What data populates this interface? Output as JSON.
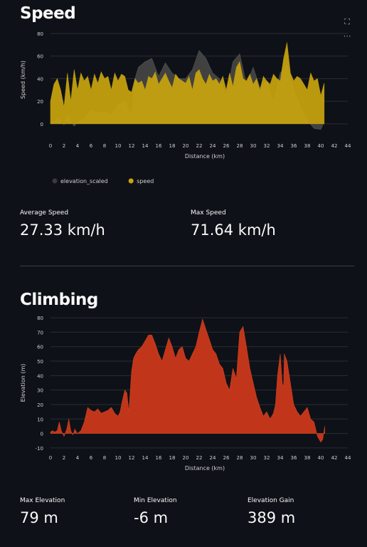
{
  "speed_section": {
    "title": "Speed",
    "toolbar": {
      "fullscreen_icon": "fullscreen-icon",
      "menu_icon": "more-horizontal-icon"
    }
  },
  "climbing_section": {
    "title": "Climbing"
  },
  "speed_metrics": {
    "avg_label": "Average Speed",
    "avg_value": "27.33 km/h",
    "max_label": "Max Speed",
    "max_value": "71.64 km/h"
  },
  "climb_metrics": {
    "max_elev_label": "Max Elevation",
    "max_elev_value": "79 m",
    "min_elev_label": "Min Elevation",
    "min_elev_value": "-6 m",
    "gain_label": "Elevation Gain",
    "gain_value": "389 m"
  },
  "colors": {
    "speed": "#c9a50f",
    "elevation_scaled": "#4a4a4a",
    "elevation": "#c1361b",
    "background": "#0e1117"
  },
  "chart_data": [
    {
      "type": "area",
      "xlabel": "Distance (km)",
      "ylabel": "Speed (km/h)",
      "xlim": [
        0,
        44
      ],
      "ylim": [
        -2,
        80
      ],
      "xticks": [
        "0",
        "2",
        "4",
        "6",
        "8",
        "10",
        "12",
        "14",
        "16",
        "18",
        "20",
        "22",
        "24",
        "26",
        "28",
        "30",
        "32",
        "34",
        "36",
        "38",
        "40",
        "42",
        "44"
      ],
      "yticks": [
        "0",
        "20",
        "40",
        "60",
        "80"
      ],
      "legend_position": "bottom-left",
      "series": [
        {
          "name": "elevation_scaled",
          "x": [
            0,
            0.5,
            1,
            1.5,
            2,
            2.5,
            3,
            3.5,
            4,
            5,
            6,
            7,
            8,
            9,
            10,
            11,
            11.5,
            12,
            12.5,
            13,
            14,
            15,
            16,
            17,
            18,
            19,
            20,
            21,
            22,
            23,
            24,
            25,
            26,
            27,
            28,
            29,
            30,
            31,
            32,
            33,
            34,
            35,
            36,
            37,
            38,
            39,
            40,
            40.5
          ],
          "values": [
            1,
            2,
            5,
            3,
            -1,
            7,
            2,
            -2,
            1,
            5,
            12,
            10,
            11,
            8,
            17,
            20,
            13,
            8,
            40,
            50,
            55,
            58,
            42,
            54,
            45,
            40,
            40,
            48,
            65,
            58,
            45,
            40,
            25,
            55,
            62,
            35,
            50,
            32,
            38,
            20,
            45,
            52,
            30,
            15,
            3,
            -4,
            -5,
            2
          ]
        },
        {
          "name": "speed",
          "x": [
            0,
            0.5,
            1,
            1.5,
            2,
            2.5,
            3,
            3.5,
            4,
            4.5,
            5,
            5.5,
            6,
            6.5,
            7,
            7.5,
            8,
            8.5,
            9,
            9.5,
            10,
            10.5,
            11,
            11.5,
            12,
            12.5,
            13,
            13.5,
            14,
            14.5,
            15,
            15.5,
            16,
            16.5,
            17,
            17.5,
            18,
            18.5,
            19,
            19.5,
            20,
            20.5,
            21,
            21.5,
            22,
            22.5,
            23,
            23.5,
            24,
            24.5,
            25,
            25.5,
            26,
            26.5,
            27,
            27.5,
            28,
            28.5,
            29,
            29.5,
            30,
            30.5,
            31,
            31.5,
            32,
            32.5,
            33,
            33.5,
            34,
            34.5,
            35,
            35.5,
            36,
            36.5,
            37,
            37.5,
            38,
            38.5,
            39,
            39.5,
            40,
            40.5
          ],
          "values": [
            20,
            35,
            40,
            30,
            15,
            45,
            20,
            48,
            30,
            45,
            38,
            42,
            30,
            44,
            36,
            46,
            40,
            42,
            30,
            45,
            38,
            44,
            42,
            30,
            28,
            40,
            36,
            38,
            30,
            42,
            40,
            46,
            35,
            40,
            45,
            38,
            32,
            44,
            40,
            38,
            36,
            42,
            30,
            45,
            48,
            40,
            35,
            44,
            38,
            40,
            35,
            42,
            30,
            45,
            33,
            50,
            55,
            40,
            38,
            44,
            35,
            40,
            30,
            42,
            38,
            35,
            44,
            40,
            38,
            58,
            72,
            45,
            38,
            42,
            40,
            35,
            30,
            45,
            38,
            40,
            25,
            36
          ]
        }
      ]
    },
    {
      "type": "area",
      "xlabel": "Distance (km)",
      "ylabel": "Elevation (m)",
      "xlim": [
        0,
        44
      ],
      "ylim": [
        -12,
        82
      ],
      "xticks": [
        "0",
        "2",
        "4",
        "6",
        "8",
        "10",
        "12",
        "14",
        "16",
        "18",
        "20",
        "22",
        "24",
        "26",
        "28",
        "30",
        "32",
        "34",
        "36",
        "38",
        "40",
        "42",
        "44"
      ],
      "yticks": [
        "-10",
        "0",
        "10",
        "20",
        "30",
        "40",
        "50",
        "60",
        "70",
        "80"
      ],
      "series": [
        {
          "name": "elevation",
          "x": [
            0,
            0.3,
            0.6,
            1,
            1.3,
            1.6,
            2,
            2.4,
            2.7,
            3,
            3.3,
            3.6,
            4,
            4.5,
            5,
            5.5,
            6,
            6.5,
            7,
            7.5,
            8,
            8.5,
            9,
            9.5,
            10,
            10.3,
            10.6,
            11,
            11.3,
            11.6,
            12,
            12.3,
            12.6,
            13,
            13.5,
            14,
            14.5,
            15,
            15.5,
            16,
            16.5,
            17,
            17.5,
            18,
            18.5,
            19,
            19.5,
            20,
            20.5,
            21,
            21.5,
            22,
            22.5,
            23,
            23.5,
            24,
            24.5,
            25,
            25.5,
            26,
            26.5,
            27,
            27.5,
            28,
            28.5,
            29,
            29.5,
            30,
            30.5,
            31,
            31.5,
            32,
            32.5,
            33,
            33.3,
            33.6,
            34,
            34.3,
            34.5,
            34.6,
            35,
            35.5,
            36,
            36.5,
            37,
            37.5,
            38,
            38.5,
            39,
            39.5,
            40,
            40.3,
            40.6
          ],
          "values": [
            1,
            2,
            1,
            2,
            8,
            2,
            -2,
            3,
            10,
            2,
            -1,
            3,
            0,
            2,
            8,
            18,
            16,
            15,
            17,
            14,
            15,
            16,
            18,
            14,
            12,
            15,
            22,
            30,
            28,
            15,
            43,
            52,
            55,
            58,
            60,
            64,
            68,
            68,
            62,
            55,
            50,
            58,
            66,
            60,
            52,
            58,
            60,
            52,
            50,
            55,
            60,
            70,
            79,
            72,
            65,
            58,
            55,
            48,
            45,
            35,
            30,
            45,
            38,
            70,
            74,
            60,
            45,
            35,
            25,
            18,
            12,
            15,
            10,
            14,
            20,
            40,
            55,
            35,
            32,
            55,
            50,
            35,
            20,
            15,
            12,
            15,
            18,
            10,
            8,
            -2,
            -6,
            -4,
            5
          ]
        }
      ]
    }
  ]
}
